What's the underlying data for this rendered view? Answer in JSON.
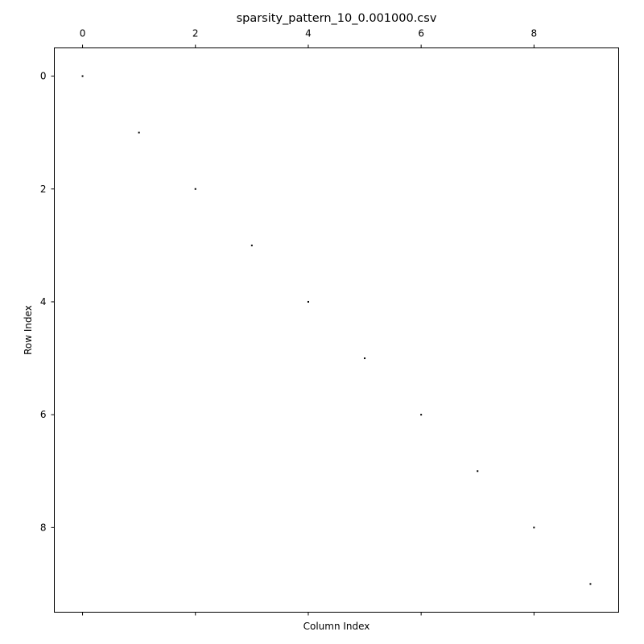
{
  "chart_data": {
    "type": "scatter",
    "title": "sparsity_pattern_10_0.001000.csv",
    "xlabel": "Column Index",
    "ylabel": "Row Index",
    "xlim": [
      -0.5,
      9.5
    ],
    "ylim": [
      9.5,
      -0.5
    ],
    "x_ticks": [
      0,
      2,
      4,
      6,
      8
    ],
    "y_ticks": [
      0,
      2,
      4,
      6,
      8
    ],
    "x_tick_position": "top",
    "grid": false,
    "series": [
      {
        "points": [
          {
            "col": 0,
            "row": 0
          },
          {
            "col": 1,
            "row": 1
          },
          {
            "col": 2,
            "row": 2
          },
          {
            "col": 3,
            "row": 3
          },
          {
            "col": 4,
            "row": 4
          },
          {
            "col": 5,
            "row": 5
          },
          {
            "col": 6,
            "row": 6
          },
          {
            "col": 7,
            "row": 7
          },
          {
            "col": 8,
            "row": 8
          },
          {
            "col": 9,
            "row": 9
          }
        ],
        "color": "#000000"
      }
    ]
  }
}
